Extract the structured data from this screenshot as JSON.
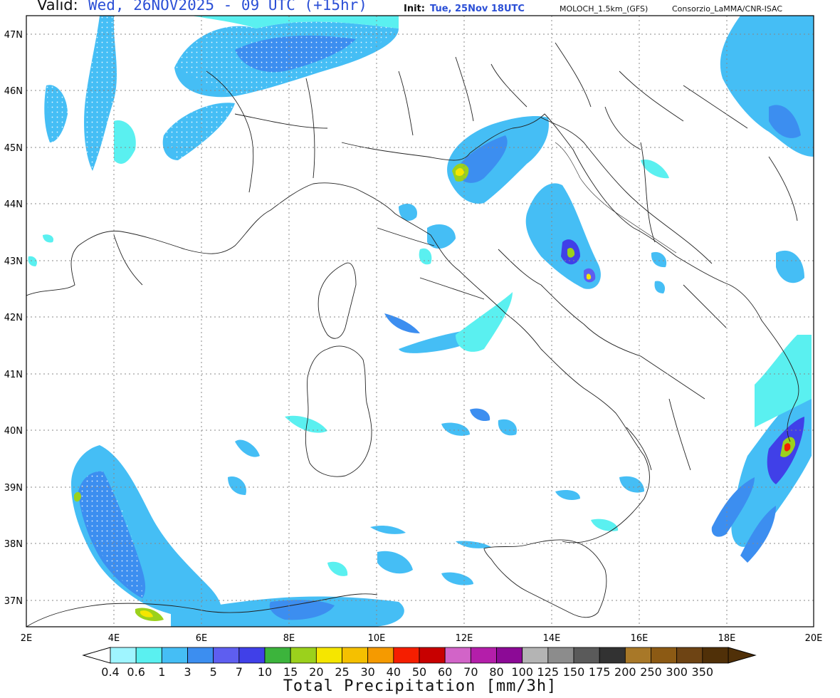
{
  "header": {
    "valid_label": "Valid:",
    "valid_value": "Wed, 26NOV2025 - 09 UTC (+15hr)",
    "init_label": "Init:",
    "init_value": "Tue, 25Nov 18UTC",
    "model": "MOLOCH_1.5km_(GFS)",
    "organization": "Consorzio_LaMMA/CNR-ISAC"
  },
  "axes": {
    "lat_labels": [
      "47N",
      "46N",
      "45N",
      "44N",
      "43N",
      "42N",
      "41N",
      "40N",
      "39N",
      "38N",
      "37N"
    ],
    "lon_labels": [
      "2E",
      "4E",
      "6E",
      "8E",
      "10E",
      "12E",
      "14E",
      "16E",
      "18E",
      "20E"
    ],
    "lat_range": [
      36.5,
      47.3
    ],
    "lon_range": [
      2,
      20
    ],
    "grid": "dotted"
  },
  "colorbar": {
    "title": "Total Precipitation [mm/3h]",
    "labels": [
      "0.4",
      "0.6",
      "1",
      "3",
      "5",
      "7",
      "10",
      "15",
      "20",
      "25",
      "30",
      "40",
      "50",
      "60",
      "70",
      "80",
      "100",
      "125",
      "150",
      "175",
      "200",
      "250",
      "300",
      "350"
    ],
    "colors": [
      "#9ff5ff",
      "#5af0f0",
      "#45bef5",
      "#3c8ef0",
      "#5e5ef0",
      "#4040e8",
      "#3cb43c",
      "#9bd11c",
      "#f5e600",
      "#f5c000",
      "#f59a00",
      "#f51e00",
      "#c80000",
      "#d264c8",
      "#b41eaa",
      "#8c0a96",
      "#b4b4b4",
      "#8c8c8c",
      "#5a5a5a",
      "#323232",
      "#a87828",
      "#8c5a14",
      "#6e4414",
      "#503008"
    ]
  }
}
